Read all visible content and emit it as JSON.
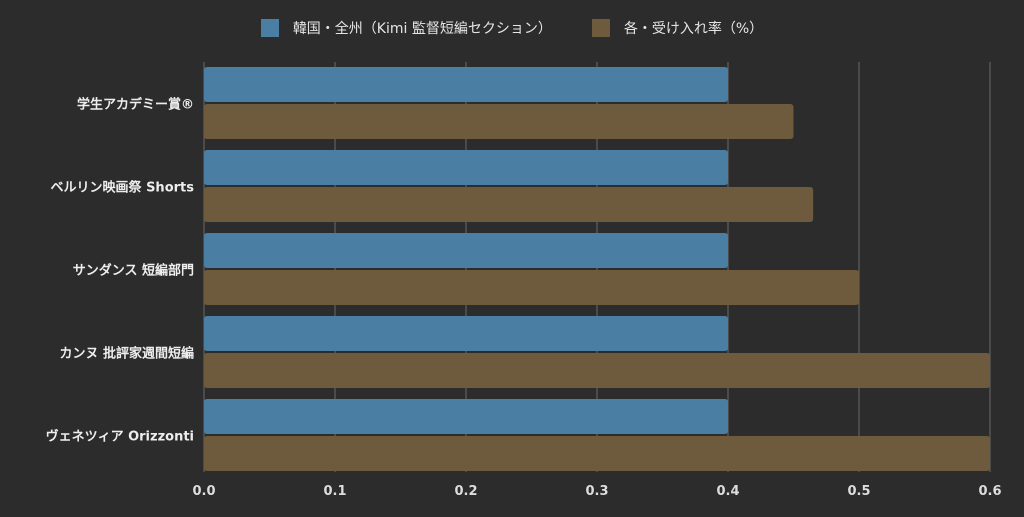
{
  "chart_data": {
    "type": "bar",
    "orientation": "horizontal",
    "categories": [
      "学生アカデミー賞®",
      "ベルリン映画祭 Shorts",
      "サンダンス 短編部門",
      "カンヌ 批評家週間短編",
      "ヴェネツィア Orizzonti"
    ],
    "series": [
      {
        "name": "韓国・全州（Kimi 監督短編セクション）",
        "color": "#4a7fa3",
        "values": [
          0.4,
          0.4,
          0.4,
          0.4,
          0.4
        ]
      },
      {
        "name": "各・受け入れ率（%）",
        "color": "#6e5a3c",
        "values": [
          0.45,
          0.465,
          0.5,
          0.6,
          0.6
        ]
      }
    ],
    "xlim": [
      0,
      0.6
    ],
    "xticks": [
      "0.0",
      "0.1",
      "0.2",
      "0.3",
      "0.4",
      "0.5",
      "0.6"
    ],
    "grid": true,
    "legend_position": "top-center",
    "title": "",
    "xlabel": "",
    "ylabel": ""
  }
}
